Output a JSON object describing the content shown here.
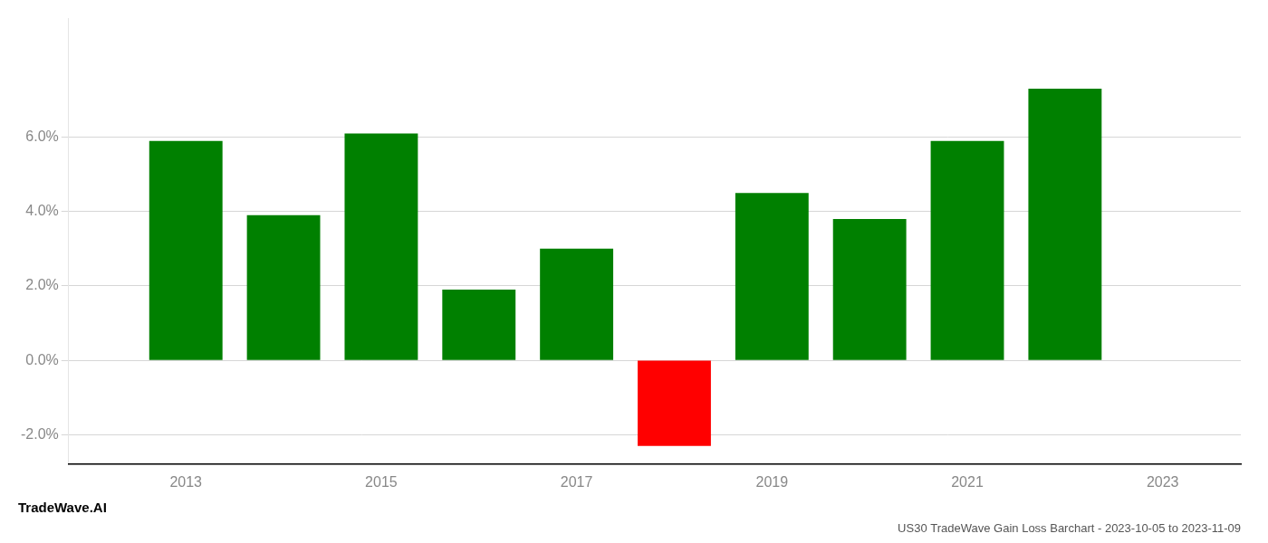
{
  "chart_data": {
    "type": "bar",
    "title": "US30 TradeWave Gain Loss Barchart - 2023-10-05 to 2023-11-09",
    "annotations": [
      "TradeWave.AI"
    ],
    "x": [
      2013,
      2014,
      2015,
      2016,
      2017,
      2018,
      2019,
      2020,
      2021,
      2022
    ],
    "values": [
      0.059,
      0.039,
      0.061,
      0.019,
      0.03,
      -0.023,
      0.045,
      0.038,
      0.059,
      0.073
    ],
    "colors": [
      "#008000",
      "#008000",
      "#008000",
      "#008000",
      "#008000",
      "#ff0000",
      "#008000",
      "#008000",
      "#008000",
      "#008000"
    ],
    "xlim": [
      2011.8,
      2023.8
    ],
    "xticks": [
      2013,
      2015,
      2017,
      2019,
      2021,
      2023
    ],
    "ylim": [
      -0.028,
      0.092
    ],
    "yticks": [
      {
        "value": -0.02,
        "label": "-2.0%"
      },
      {
        "value": 0.0,
        "label": "0.0%"
      },
      {
        "value": 0.02,
        "label": "2.0%"
      },
      {
        "value": 0.04,
        "label": "4.0%"
      },
      {
        "value": 0.06,
        "label": "6.0%"
      }
    ],
    "grid": true
  }
}
